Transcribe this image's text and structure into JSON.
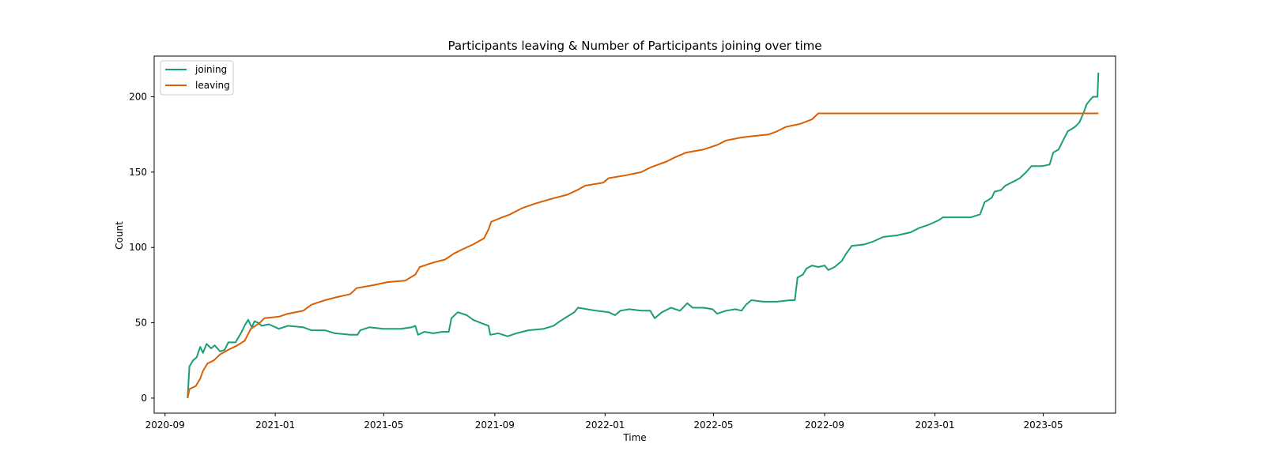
{
  "chart_data": {
    "type": "line",
    "title": "Participants leaving & Number of Participants joining over time",
    "xlabel": "Time",
    "ylabel": "Count",
    "xlim": [
      "2020-08-20",
      "2023-07-20"
    ],
    "ylim": [
      -10,
      227
    ],
    "x_ticks": [
      "2020-09",
      "2021-01",
      "2021-05",
      "2021-09",
      "2022-01",
      "2022-05",
      "2022-09",
      "2023-01",
      "2023-05"
    ],
    "y_ticks": [
      0,
      50,
      100,
      150,
      200
    ],
    "grid": false,
    "legend_position": "top-left",
    "series": [
      {
        "name": "joining",
        "color": "#1b9e77",
        "points": [
          [
            "2020-09-26",
            0
          ],
          [
            "2020-09-28",
            21
          ],
          [
            "2020-10-02",
            25
          ],
          [
            "2020-10-06",
            27
          ],
          [
            "2020-10-10",
            34
          ],
          [
            "2020-10-13",
            30
          ],
          [
            "2020-10-17",
            36
          ],
          [
            "2020-10-22",
            33
          ],
          [
            "2020-10-26",
            35
          ],
          [
            "2020-11-01",
            31
          ],
          [
            "2020-11-06",
            32
          ],
          [
            "2020-11-10",
            37
          ],
          [
            "2020-11-18",
            37
          ],
          [
            "2020-11-24",
            43
          ],
          [
            "2020-11-28",
            48
          ],
          [
            "2020-12-02",
            52
          ],
          [
            "2020-12-06",
            47
          ],
          [
            "2020-12-09",
            51
          ],
          [
            "2020-12-13",
            50
          ],
          [
            "2020-12-17",
            48
          ],
          [
            "2020-12-25",
            49
          ],
          [
            "2021-01-05",
            46
          ],
          [
            "2021-01-15",
            48
          ],
          [
            "2021-02-01",
            47
          ],
          [
            "2021-02-10",
            45
          ],
          [
            "2021-02-25",
            45
          ],
          [
            "2021-03-08",
            43
          ],
          [
            "2021-03-25",
            42
          ],
          [
            "2021-04-02",
            42
          ],
          [
            "2021-04-05",
            45
          ],
          [
            "2021-04-15",
            47
          ],
          [
            "2021-05-01",
            46
          ],
          [
            "2021-05-20",
            46
          ],
          [
            "2021-06-01",
            47
          ],
          [
            "2021-06-05",
            48
          ],
          [
            "2021-06-08",
            42
          ],
          [
            "2021-06-15",
            44
          ],
          [
            "2021-06-25",
            43
          ],
          [
            "2021-07-05",
            44
          ],
          [
            "2021-07-12",
            44
          ],
          [
            "2021-07-15",
            53
          ],
          [
            "2021-07-22",
            57
          ],
          [
            "2021-08-01",
            55
          ],
          [
            "2021-08-08",
            52
          ],
          [
            "2021-08-16",
            50
          ],
          [
            "2021-08-25",
            48
          ],
          [
            "2021-08-27",
            42
          ],
          [
            "2021-09-05",
            43
          ],
          [
            "2021-09-15",
            41
          ],
          [
            "2021-09-25",
            43
          ],
          [
            "2021-10-08",
            45
          ],
          [
            "2021-10-25",
            46
          ],
          [
            "2021-11-05",
            48
          ],
          [
            "2021-11-12",
            51
          ],
          [
            "2021-11-20",
            54
          ],
          [
            "2021-11-28",
            57
          ],
          [
            "2021-12-02",
            60
          ],
          [
            "2021-12-12",
            59
          ],
          [
            "2021-12-22",
            58
          ],
          [
            "2022-01-05",
            57
          ],
          [
            "2022-01-12",
            55
          ],
          [
            "2022-01-18",
            58
          ],
          [
            "2022-01-28",
            59
          ],
          [
            "2022-02-10",
            58
          ],
          [
            "2022-02-20",
            58
          ],
          [
            "2022-02-25",
            53
          ],
          [
            "2022-03-05",
            57
          ],
          [
            "2022-03-15",
            60
          ],
          [
            "2022-03-25",
            58
          ],
          [
            "2022-04-02",
            63
          ],
          [
            "2022-04-08",
            60
          ],
          [
            "2022-04-20",
            60
          ],
          [
            "2022-04-30",
            59
          ],
          [
            "2022-05-05",
            56
          ],
          [
            "2022-05-15",
            58
          ],
          [
            "2022-05-25",
            59
          ],
          [
            "2022-06-01",
            58
          ],
          [
            "2022-06-06",
            62
          ],
          [
            "2022-06-12",
            65
          ],
          [
            "2022-06-25",
            64
          ],
          [
            "2022-07-10",
            64
          ],
          [
            "2022-07-25",
            65
          ],
          [
            "2022-07-30",
            65
          ],
          [
            "2022-08-02",
            80
          ],
          [
            "2022-08-08",
            82
          ],
          [
            "2022-08-12",
            86
          ],
          [
            "2022-08-18",
            88
          ],
          [
            "2022-08-25",
            87
          ],
          [
            "2022-09-01",
            88
          ],
          [
            "2022-09-05",
            85
          ],
          [
            "2022-09-12",
            87
          ],
          [
            "2022-09-20",
            91
          ],
          [
            "2022-09-25",
            96
          ],
          [
            "2022-10-01",
            101
          ],
          [
            "2022-10-15",
            102
          ],
          [
            "2022-10-25",
            104
          ],
          [
            "2022-11-05",
            107
          ],
          [
            "2022-11-20",
            108
          ],
          [
            "2022-12-05",
            110
          ],
          [
            "2022-12-15",
            113
          ],
          [
            "2022-12-25",
            115
          ],
          [
            "2023-01-05",
            118
          ],
          [
            "2023-01-10",
            120
          ],
          [
            "2023-01-25",
            120
          ],
          [
            "2023-02-10",
            120
          ],
          [
            "2023-02-20",
            122
          ],
          [
            "2023-02-25",
            130
          ],
          [
            "2023-03-05",
            133
          ],
          [
            "2023-03-08",
            137
          ],
          [
            "2023-03-15",
            138
          ],
          [
            "2023-03-20",
            141
          ],
          [
            "2023-03-30",
            144
          ],
          [
            "2023-04-05",
            146
          ],
          [
            "2023-04-12",
            150
          ],
          [
            "2023-04-18",
            154
          ],
          [
            "2023-04-30",
            154
          ],
          [
            "2023-05-08",
            155
          ],
          [
            "2023-05-12",
            163
          ],
          [
            "2023-05-18",
            165
          ],
          [
            "2023-05-22",
            170
          ],
          [
            "2023-05-28",
            177
          ],
          [
            "2023-06-05",
            180
          ],
          [
            "2023-06-10",
            183
          ],
          [
            "2023-06-15",
            190
          ],
          [
            "2023-06-18",
            195
          ],
          [
            "2023-06-22",
            198
          ],
          [
            "2023-06-25",
            200
          ],
          [
            "2023-06-30",
            200
          ],
          [
            "2023-07-01",
            216
          ]
        ]
      },
      {
        "name": "leaving",
        "color": "#d95f02",
        "points": [
          [
            "2020-09-26",
            0
          ],
          [
            "2020-09-28",
            6
          ],
          [
            "2020-10-05",
            8
          ],
          [
            "2020-10-10",
            13
          ],
          [
            "2020-10-13",
            18
          ],
          [
            "2020-10-18",
            23
          ],
          [
            "2020-10-25",
            25
          ],
          [
            "2020-11-01",
            29
          ],
          [
            "2020-11-10",
            32
          ],
          [
            "2020-11-20",
            35
          ],
          [
            "2020-11-28",
            38
          ],
          [
            "2020-12-05",
            46
          ],
          [
            "2020-12-10",
            48
          ],
          [
            "2020-12-15",
            50
          ],
          [
            "2020-12-20",
            53
          ],
          [
            "2021-01-05",
            54
          ],
          [
            "2021-01-15",
            56
          ],
          [
            "2021-02-01",
            58
          ],
          [
            "2021-02-10",
            62
          ],
          [
            "2021-02-25",
            65
          ],
          [
            "2021-03-10",
            67
          ],
          [
            "2021-03-25",
            69
          ],
          [
            "2021-04-01",
            73
          ],
          [
            "2021-04-20",
            75
          ],
          [
            "2021-05-05",
            77
          ],
          [
            "2021-05-25",
            78
          ],
          [
            "2021-06-05",
            82
          ],
          [
            "2021-06-10",
            87
          ],
          [
            "2021-06-25",
            90
          ],
          [
            "2021-07-08",
            92
          ],
          [
            "2021-07-18",
            96
          ],
          [
            "2021-07-28",
            99
          ],
          [
            "2021-08-08",
            102
          ],
          [
            "2021-08-20",
            106
          ],
          [
            "2021-08-25",
            112
          ],
          [
            "2021-08-28",
            117
          ],
          [
            "2021-09-05",
            119
          ],
          [
            "2021-09-18",
            122
          ],
          [
            "2021-10-01",
            126
          ],
          [
            "2021-10-15",
            129
          ],
          [
            "2021-11-01",
            132
          ],
          [
            "2021-11-20",
            135
          ],
          [
            "2021-12-01",
            138
          ],
          [
            "2021-12-10",
            141
          ],
          [
            "2021-12-30",
            143
          ],
          [
            "2022-01-05",
            146
          ],
          [
            "2022-01-25",
            148
          ],
          [
            "2022-02-10",
            150
          ],
          [
            "2022-02-20",
            153
          ],
          [
            "2022-03-10",
            157
          ],
          [
            "2022-03-20",
            160
          ],
          [
            "2022-04-01",
            163
          ],
          [
            "2022-04-20",
            165
          ],
          [
            "2022-05-05",
            168
          ],
          [
            "2022-05-15",
            171
          ],
          [
            "2022-06-01",
            173
          ],
          [
            "2022-06-15",
            174
          ],
          [
            "2022-07-01",
            175
          ],
          [
            "2022-07-10",
            177
          ],
          [
            "2022-07-20",
            180
          ],
          [
            "2022-08-05",
            182
          ],
          [
            "2022-08-18",
            185
          ],
          [
            "2022-08-25",
            189
          ],
          [
            "2023-07-01",
            189
          ]
        ]
      }
    ]
  }
}
